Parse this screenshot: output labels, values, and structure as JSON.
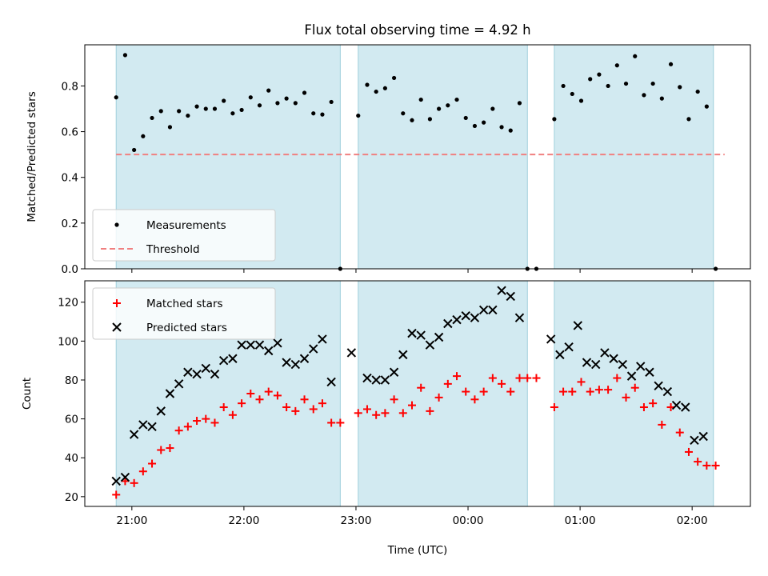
{
  "chart_data": {
    "title": "Flux total observing time = 4.92 h",
    "xlabel": "Time (UTC)",
    "x_unit": "hours (UTC clock, values >= 24 are after midnight)",
    "x_ticks": [
      {
        "x": 21,
        "label": "21:00"
      },
      {
        "x": 22,
        "label": "22:00"
      },
      {
        "x": 23,
        "label": "23:00"
      },
      {
        "x": 24,
        "label": "00:00"
      },
      {
        "x": 25,
        "label": "01:00"
      },
      {
        "x": 26,
        "label": "02:00"
      }
    ],
    "xlim": [
      20.58,
      26.52
    ],
    "shaded_intervals": [
      [
        20.86,
        22.86
      ],
      [
        23.02,
        24.53
      ],
      [
        24.77,
        26.19
      ]
    ],
    "shade_color": "#add8e6",
    "panels": [
      {
        "type": "scatter",
        "ylabel": "Matched/Predicted stars",
        "ylim": [
          0,
          0.98
        ],
        "yticks": [
          "0.0",
          "0.2",
          "0.4",
          "0.6",
          "0.8"
        ],
        "legend_position": "lower-left",
        "series": [
          {
            "name": "Measurements",
            "marker": "dot",
            "color": "#000000",
            "points": [
              [
                20.86,
                0.75
              ],
              [
                20.94,
                0.935
              ],
              [
                21.02,
                0.52
              ],
              [
                21.1,
                0.58
              ],
              [
                21.18,
                0.66
              ],
              [
                21.26,
                0.69
              ],
              [
                21.34,
                0.62
              ],
              [
                21.42,
                0.69
              ],
              [
                21.5,
                0.67
              ],
              [
                21.58,
                0.71
              ],
              [
                21.66,
                0.7
              ],
              [
                21.74,
                0.7
              ],
              [
                21.82,
                0.735
              ],
              [
                21.9,
                0.68
              ],
              [
                21.98,
                0.695
              ],
              [
                22.06,
                0.75
              ],
              [
                22.14,
                0.715
              ],
              [
                22.22,
                0.78
              ],
              [
                22.3,
                0.725
              ],
              [
                22.38,
                0.745
              ],
              [
                22.46,
                0.725
              ],
              [
                22.54,
                0.77
              ],
              [
                22.62,
                0.68
              ],
              [
                22.7,
                0.675
              ],
              [
                22.78,
                0.73
              ],
              [
                22.86,
                0.0
              ],
              [
                23.02,
                0.67
              ],
              [
                23.1,
                0.805
              ],
              [
                23.18,
                0.775
              ],
              [
                23.26,
                0.79
              ],
              [
                23.34,
                0.835
              ],
              [
                23.42,
                0.68
              ],
              [
                23.5,
                0.65
              ],
              [
                23.58,
                0.74
              ],
              [
                23.66,
                0.655
              ],
              [
                23.74,
                0.7
              ],
              [
                23.82,
                0.715
              ],
              [
                23.9,
                0.74
              ],
              [
                23.98,
                0.66
              ],
              [
                24.06,
                0.625
              ],
              [
                24.14,
                0.64
              ],
              [
                24.22,
                0.7
              ],
              [
                24.3,
                0.62
              ],
              [
                24.38,
                0.605
              ],
              [
                24.46,
                0.725
              ],
              [
                24.53,
                0.0
              ],
              [
                24.61,
                0.0
              ],
              [
                24.77,
                0.655
              ],
              [
                24.85,
                0.8
              ],
              [
                24.93,
                0.765
              ],
              [
                25.01,
                0.735
              ],
              [
                25.09,
                0.83
              ],
              [
                25.17,
                0.85
              ],
              [
                25.25,
                0.8
              ],
              [
                25.33,
                0.89
              ],
              [
                25.41,
                0.81
              ],
              [
                25.49,
                0.93
              ],
              [
                25.57,
                0.76
              ],
              [
                25.65,
                0.81
              ],
              [
                25.73,
                0.745
              ],
              [
                25.81,
                0.895
              ],
              [
                25.89,
                0.795
              ],
              [
                25.97,
                0.655
              ],
              [
                26.05,
                0.775
              ],
              [
                26.13,
                0.71
              ],
              [
                26.21,
                0.0
              ]
            ]
          },
          {
            "name": "Threshold",
            "style": "dashed-line",
            "color": "#f08080",
            "points": [
              [
                20.86,
                0.5
              ],
              [
                26.29,
                0.5
              ]
            ]
          }
        ]
      },
      {
        "type": "scatter",
        "ylabel": "Count",
        "ylim": [
          15,
          131
        ],
        "yticks": [
          "20",
          "40",
          "60",
          "80",
          "100",
          "120"
        ],
        "legend_position": "upper-left",
        "series": [
          {
            "name": "Matched stars",
            "marker": "plus",
            "color": "#ff0000",
            "points": [
              [
                20.86,
                21
              ],
              [
                20.94,
                28
              ],
              [
                21.02,
                27
              ],
              [
                21.1,
                33
              ],
              [
                21.18,
                37
              ],
              [
                21.26,
                44
              ],
              [
                21.34,
                45
              ],
              [
                21.42,
                54
              ],
              [
                21.5,
                56
              ],
              [
                21.58,
                59
              ],
              [
                21.66,
                60
              ],
              [
                21.74,
                58
              ],
              [
                21.82,
                66
              ],
              [
                21.9,
                62
              ],
              [
                21.98,
                68
              ],
              [
                22.06,
                73
              ],
              [
                22.14,
                70
              ],
              [
                22.22,
                74
              ],
              [
                22.3,
                72
              ],
              [
                22.38,
                66
              ],
              [
                22.46,
                64
              ],
              [
                22.54,
                70
              ],
              [
                22.62,
                65
              ],
              [
                22.7,
                68
              ],
              [
                22.78,
                58
              ],
              [
                22.86,
                58
              ],
              [
                23.02,
                63
              ],
              [
                23.1,
                65
              ],
              [
                23.18,
                62
              ],
              [
                23.26,
                63
              ],
              [
                23.34,
                70
              ],
              [
                23.42,
                63
              ],
              [
                23.5,
                67
              ],
              [
                23.58,
                76
              ],
              [
                23.66,
                64
              ],
              [
                23.74,
                71
              ],
              [
                23.82,
                78
              ],
              [
                23.9,
                82
              ],
              [
                23.98,
                74
              ],
              [
                24.06,
                70
              ],
              [
                24.14,
                74
              ],
              [
                24.22,
                81
              ],
              [
                24.3,
                78
              ],
              [
                24.38,
                74
              ],
              [
                24.46,
                81
              ],
              [
                24.53,
                81
              ],
              [
                24.61,
                81
              ],
              [
                24.77,
                66
              ],
              [
                24.85,
                74
              ],
              [
                24.93,
                74
              ],
              [
                25.01,
                79
              ],
              [
                25.09,
                74
              ],
              [
                25.17,
                75
              ],
              [
                25.25,
                75
              ],
              [
                25.33,
                81
              ],
              [
                25.41,
                71
              ],
              [
                25.49,
                76
              ],
              [
                25.57,
                66
              ],
              [
                25.65,
                68
              ],
              [
                25.73,
                57
              ],
              [
                25.81,
                66
              ],
              [
                25.89,
                53
              ],
              [
                25.97,
                43
              ],
              [
                26.05,
                38
              ],
              [
                26.13,
                36
              ],
              [
                26.21,
                36
              ]
            ]
          },
          {
            "name": "Predicted stars",
            "marker": "x",
            "color": "#000000",
            "points": [
              [
                20.86,
                28
              ],
              [
                20.94,
                30
              ],
              [
                21.02,
                52
              ],
              [
                21.1,
                57
              ],
              [
                21.18,
                56
              ],
              [
                21.26,
                64
              ],
              [
                21.34,
                73
              ],
              [
                21.42,
                78
              ],
              [
                21.5,
                84
              ],
              [
                21.58,
                83
              ],
              [
                21.66,
                86
              ],
              [
                21.74,
                83
              ],
              [
                21.82,
                90
              ],
              [
                21.9,
                91
              ],
              [
                21.98,
                98
              ],
              [
                22.06,
                98
              ],
              [
                22.14,
                98
              ],
              [
                22.22,
                95
              ],
              [
                22.3,
                99
              ],
              [
                22.38,
                89
              ],
              [
                22.46,
                88
              ],
              [
                22.54,
                91
              ],
              [
                22.62,
                96
              ],
              [
                22.7,
                101
              ],
              [
                22.78,
                79
              ],
              [
                22.96,
                94
              ],
              [
                23.1,
                81
              ],
              [
                23.18,
                80
              ],
              [
                23.26,
                80
              ],
              [
                23.34,
                84
              ],
              [
                23.42,
                93
              ],
              [
                23.5,
                104
              ],
              [
                23.58,
                103
              ],
              [
                23.66,
                98
              ],
              [
                23.74,
                102
              ],
              [
                23.82,
                109
              ],
              [
                23.9,
                111
              ],
              [
                23.98,
                113
              ],
              [
                24.06,
                112
              ],
              [
                24.14,
                116
              ],
              [
                24.22,
                116
              ],
              [
                24.3,
                126
              ],
              [
                24.38,
                123
              ],
              [
                24.46,
                112
              ],
              [
                24.74,
                101
              ],
              [
                24.82,
                93
              ],
              [
                24.9,
                97
              ],
              [
                24.98,
                108
              ],
              [
                25.06,
                89
              ],
              [
                25.14,
                88
              ],
              [
                25.22,
                94
              ],
              [
                25.3,
                91
              ],
              [
                25.38,
                88
              ],
              [
                25.46,
                82
              ],
              [
                25.54,
                87
              ],
              [
                25.62,
                84
              ],
              [
                25.7,
                77
              ],
              [
                25.78,
                74
              ],
              [
                25.86,
                67
              ],
              [
                25.94,
                66
              ],
              [
                26.02,
                49
              ],
              [
                26.1,
                51
              ]
            ]
          }
        ]
      }
    ]
  }
}
